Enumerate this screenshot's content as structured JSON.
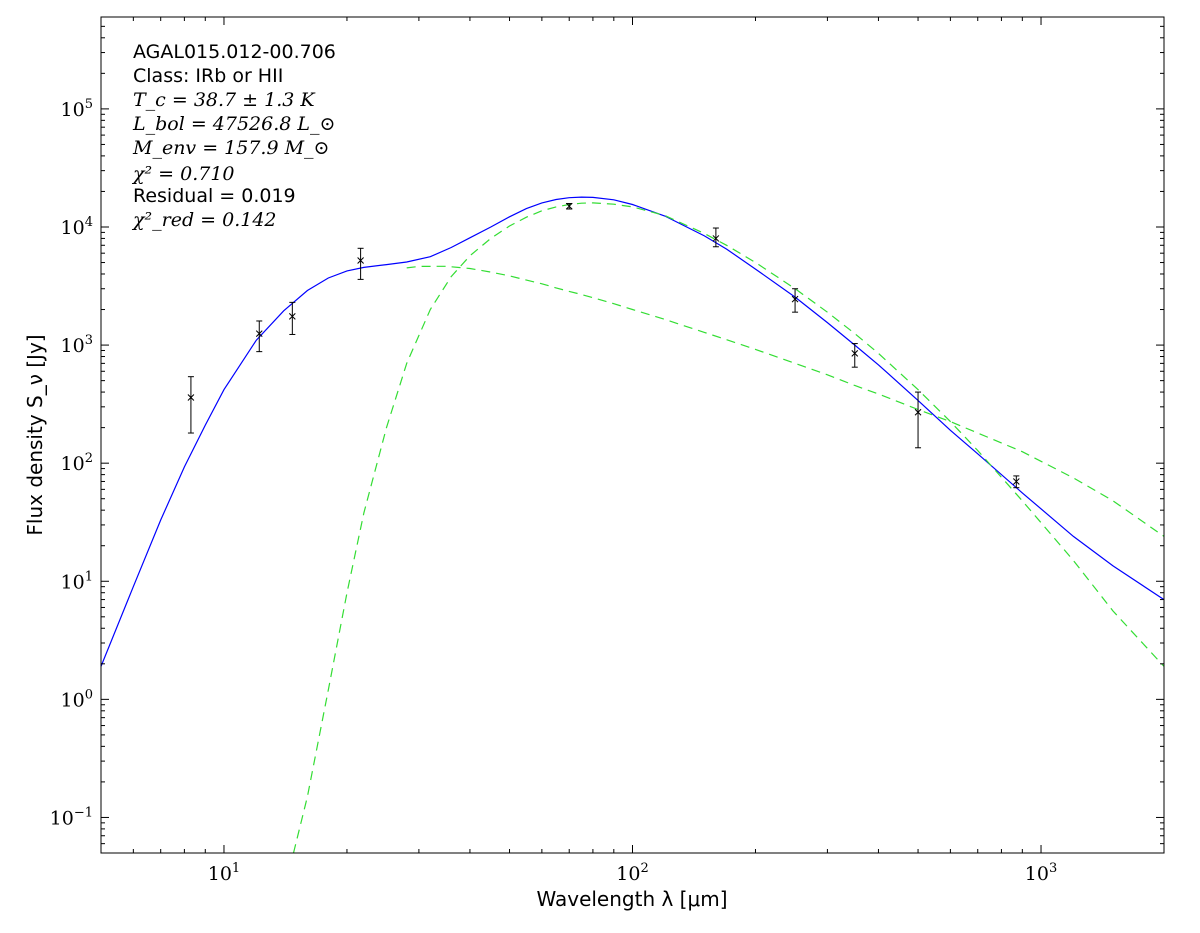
{
  "chart_data": {
    "type": "line",
    "xlabel": "Wavelength λ [μm]",
    "ylabel": "Flux density S_ν [Jy]",
    "xscale": "log",
    "yscale": "log",
    "xlim": [
      5,
      2000
    ],
    "ylim": [
      0.05,
      600000
    ],
    "grid": false,
    "x_ticks": [
      {
        "value": 10,
        "label": "10",
        "exp": "1"
      },
      {
        "value": 100,
        "label": "10",
        "exp": "2"
      },
      {
        "value": 1000,
        "label": "10",
        "exp": "3"
      }
    ],
    "y_ticks": [
      {
        "value": 0.1,
        "label": "10",
        "exp": "−1"
      },
      {
        "value": 1,
        "label": "10",
        "exp": "0"
      },
      {
        "value": 10,
        "label": "10",
        "exp": "1"
      },
      {
        "value": 100,
        "label": "10",
        "exp": "2"
      },
      {
        "value": 1000,
        "label": "10",
        "exp": "3"
      },
      {
        "value": 10000,
        "label": "10",
        "exp": "4"
      },
      {
        "value": 100000,
        "label": "10",
        "exp": "5"
      }
    ],
    "annotation": {
      "source": "AGAL015.012-00.706",
      "class_text": "Class: IRb or HII",
      "tc": "T_c = 38.7 ± 1.3 K",
      "lbol": "L_bol = 47526.8 L_⊙",
      "menv": "M_env = 157.9 M_⊙",
      "chi2": "χ² = 0.710",
      "residual": "Residual = 0.019",
      "chi2_red": "χ²_red = 0.142"
    },
    "series": [
      {
        "kind": "model",
        "color": "#0000ff",
        "style": "solid",
        "x": [
          5,
          6,
          7,
          8,
          9,
          10,
          12,
          14,
          16,
          18,
          20,
          22,
          25,
          28,
          32,
          36,
          40,
          45,
          50,
          55,
          60,
          65,
          70,
          75,
          80,
          90,
          100,
          120,
          150,
          170,
          200,
          250,
          300,
          350,
          400,
          500,
          600,
          700,
          900,
          1200,
          1500,
          2000
        ],
        "y": [
          1.9,
          9,
          33,
          93,
          210,
          420,
          1100,
          1950,
          2900,
          3700,
          4250,
          4550,
          4800,
          5050,
          5600,
          6700,
          8100,
          10000,
          12200,
          14300,
          16000,
          17100,
          17700,
          17900,
          17800,
          17000,
          15500,
          12400,
          8400,
          6500,
          4400,
          2550,
          1550,
          1000,
          680,
          340,
          190,
          120,
          56,
          24,
          13.5,
          7
        ]
      },
      {
        "kind": "component",
        "color": "#33dd33",
        "style": "dashed",
        "x": [
          28,
          30,
          35,
          40,
          45,
          50,
          55,
          60,
          65,
          70,
          75,
          80,
          90,
          100,
          120,
          150,
          170,
          200,
          250,
          300,
          350,
          400,
          500,
          600,
          700,
          900,
          1200,
          1500,
          2000
        ],
        "y": [
          4500,
          4640,
          4650,
          4450,
          4150,
          3850,
          3550,
          3300,
          3050,
          2850,
          2680,
          2520,
          2240,
          2000,
          1650,
          1280,
          1110,
          920,
          700,
          560,
          455,
          385,
          285,
          225,
          180,
          125,
          75,
          48,
          24
        ]
      },
      {
        "kind": "component",
        "color": "#33dd33",
        "style": "dashed",
        "x": [
          14.8,
          16,
          18,
          20,
          22,
          25,
          28,
          32,
          36,
          40,
          45,
          50,
          55,
          60,
          65,
          70,
          75,
          80,
          90,
          100,
          120,
          150,
          170,
          200,
          250,
          300,
          350,
          400,
          500,
          600,
          700,
          900,
          1200,
          1500,
          2000
        ],
        "y": [
          0.05,
          0.15,
          1.2,
          8,
          38,
          200,
          700,
          2000,
          3800,
          5700,
          8000,
          10200,
          12100,
          13700,
          14800,
          15500,
          15900,
          16000,
          15600,
          14800,
          12500,
          8800,
          7000,
          5000,
          3000,
          1900,
          1250,
          850,
          420,
          225,
          128,
          48,
          15,
          5.6,
          1.9
        ]
      }
    ],
    "observations": {
      "color": "#000000",
      "points": [
        {
          "x": 8.3,
          "y": 360,
          "ylow": 180,
          "yhigh": 540
        },
        {
          "x": 12.2,
          "y": 1250,
          "ylow": 880,
          "yhigh": 1600
        },
        {
          "x": 14.7,
          "y": 1750,
          "ylow": 1230,
          "yhigh": 2300
        },
        {
          "x": 21.6,
          "y": 5200,
          "ylow": 3600,
          "yhigh": 6600
        },
        {
          "x": 70,
          "y": 15000,
          "ylow": 14200,
          "yhigh": 15800
        },
        {
          "x": 160,
          "y": 8000,
          "ylow": 6800,
          "yhigh": 9800
        },
        {
          "x": 250,
          "y": 2450,
          "ylow": 1900,
          "yhigh": 3000
        },
        {
          "x": 350,
          "y": 850,
          "ylow": 650,
          "yhigh": 1030
        },
        {
          "x": 500,
          "y": 270,
          "ylow": 135,
          "yhigh": 400
        },
        {
          "x": 870,
          "y": 70,
          "ylow": 62,
          "yhigh": 78
        }
      ]
    }
  }
}
